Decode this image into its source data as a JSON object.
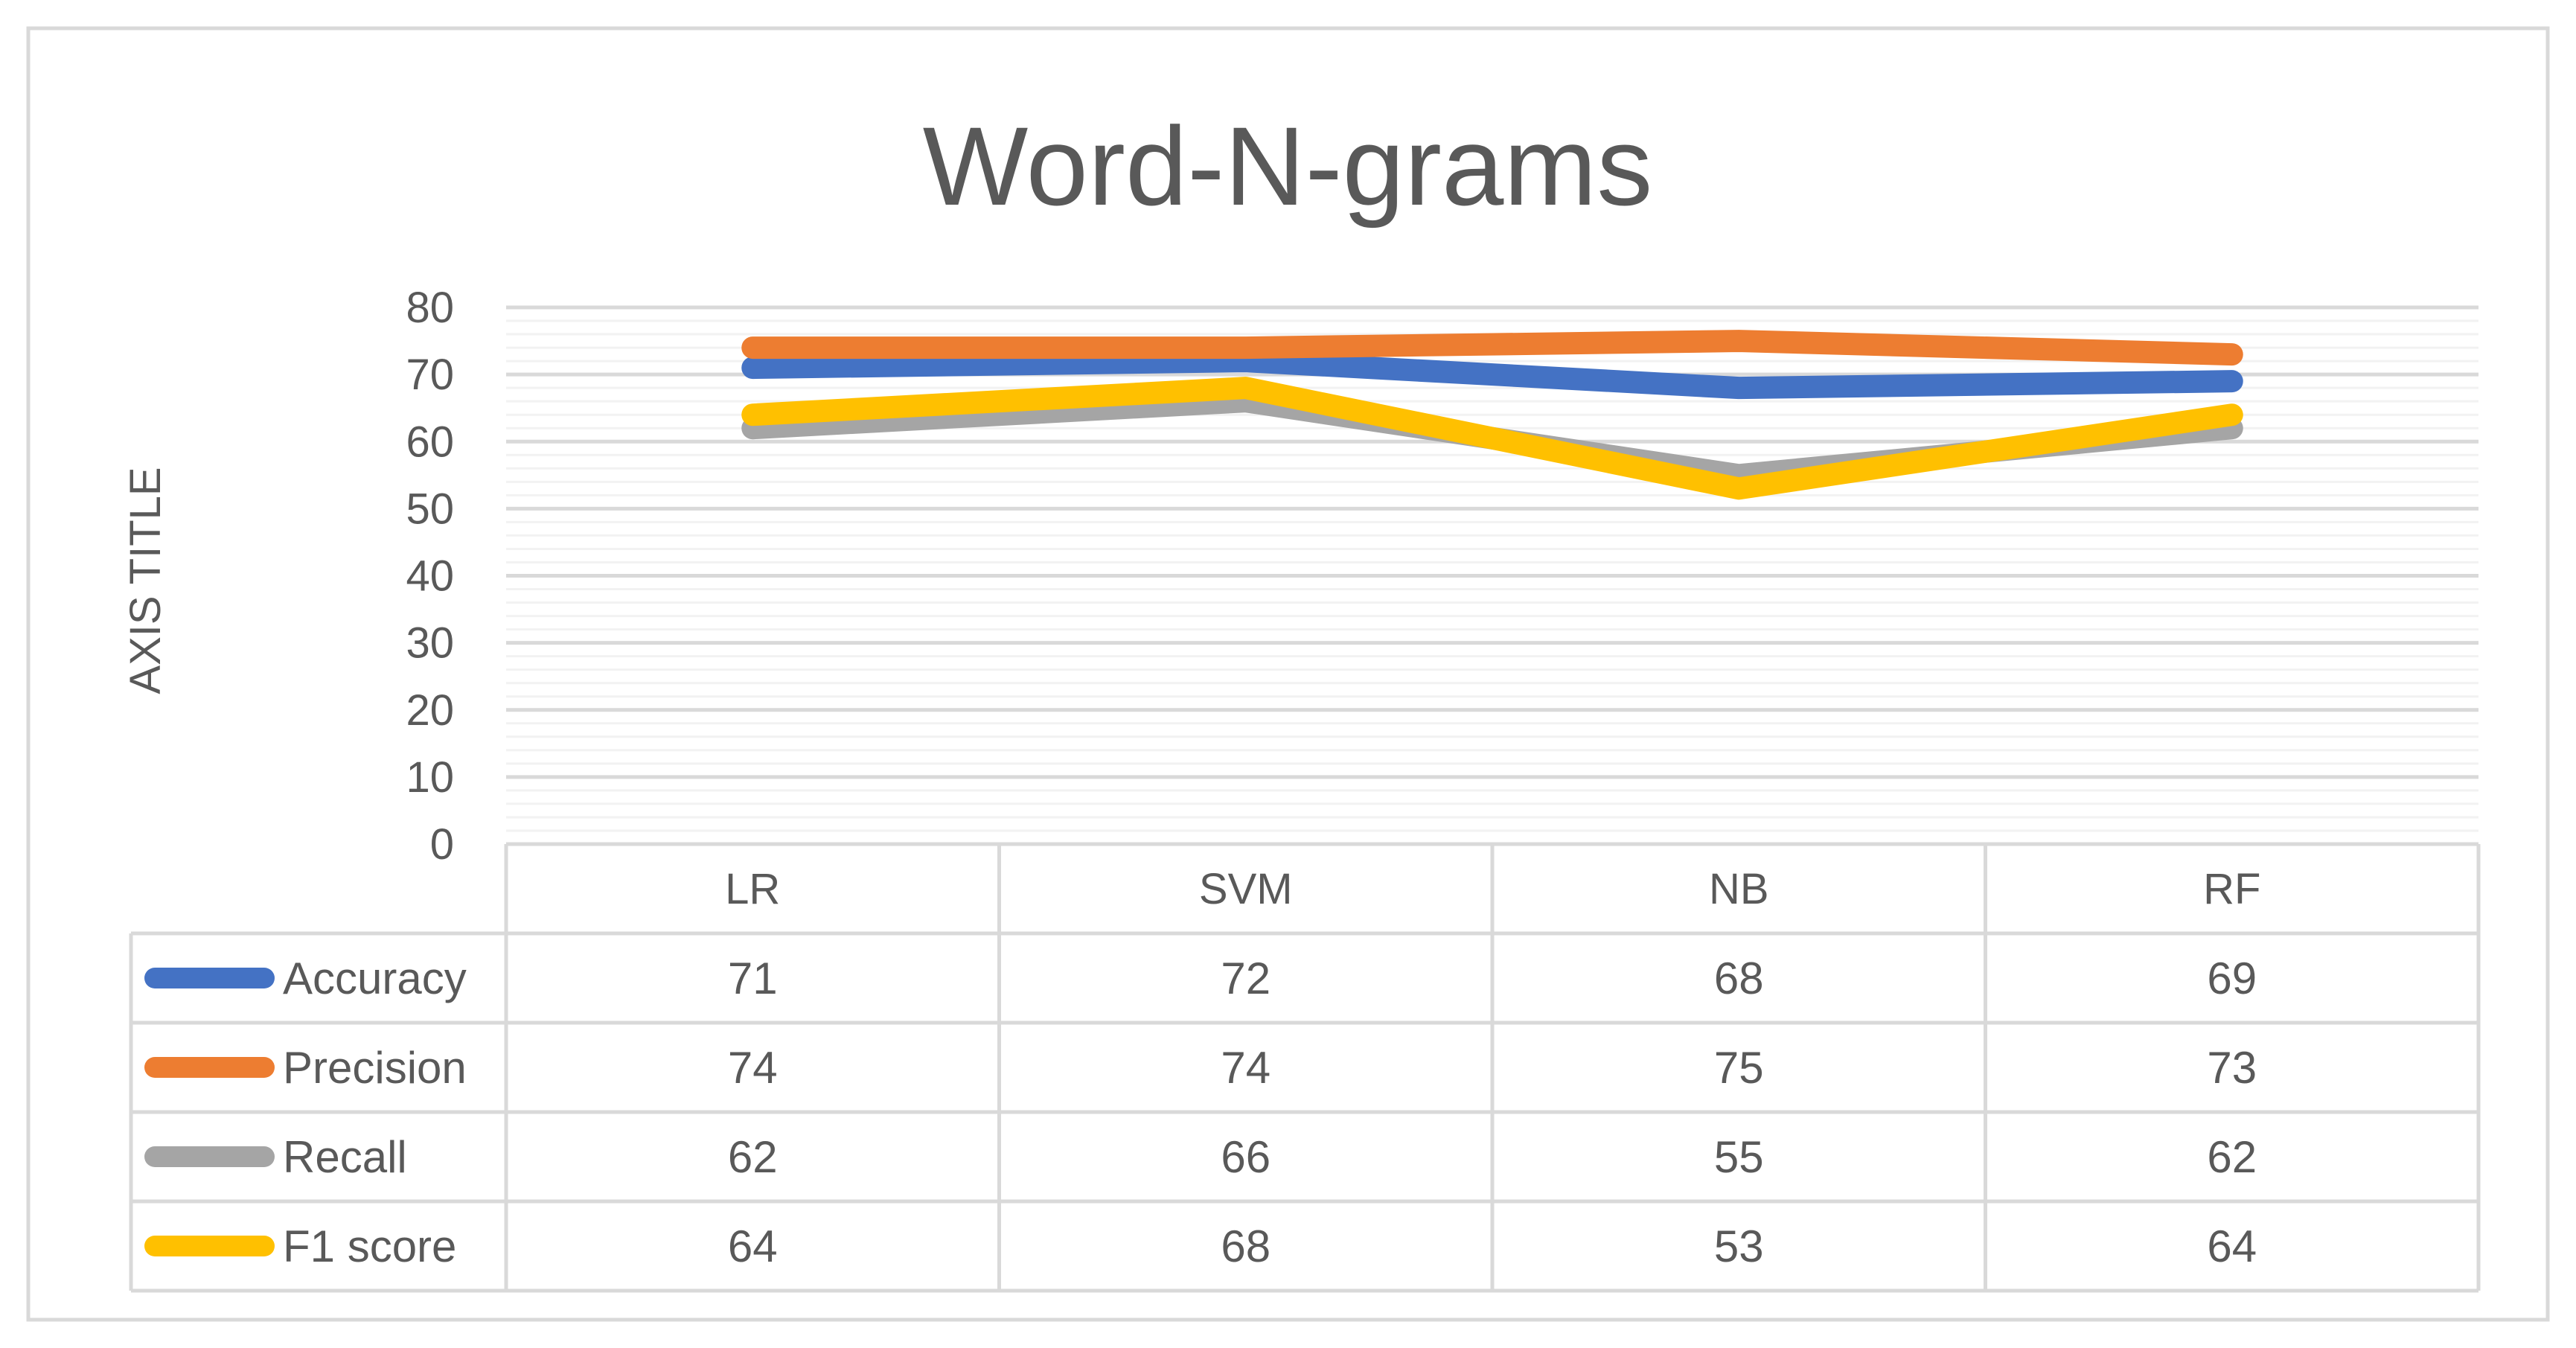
{
  "chart_data": {
    "type": "line",
    "title": "Word-N-grams",
    "ylabel": "AXIS TITLE",
    "xlabel": "",
    "ylim": [
      0,
      80
    ],
    "yticks": [
      0,
      10,
      20,
      30,
      40,
      50,
      60,
      70,
      80
    ],
    "categories": [
      "LR",
      "SVM",
      "NB",
      "RF"
    ],
    "grid": true,
    "legend": "data-table",
    "series": [
      {
        "name": "Accuracy",
        "color": "#4472C4",
        "values": [
          71,
          72,
          68,
          69
        ],
        "labels": [
          "71",
          "72",
          "68",
          "69"
        ]
      },
      {
        "name": "Precision",
        "color": "#ED7D31",
        "values": [
          74,
          74,
          75,
          73
        ],
        "labels": [
          "74",
          "74",
          "75",
          "73"
        ]
      },
      {
        "name": "Recall",
        "color": "#A5A5A5",
        "values": [
          62,
          66,
          55,
          62
        ],
        "labels": [
          "62",
          "66",
          "55",
          "62"
        ]
      },
      {
        "name": "F1 score",
        "color": "#FFC000",
        "values": [
          64,
          68,
          53,
          64
        ],
        "labels": [
          "64",
          "68",
          "53",
          "64"
        ]
      }
    ]
  }
}
